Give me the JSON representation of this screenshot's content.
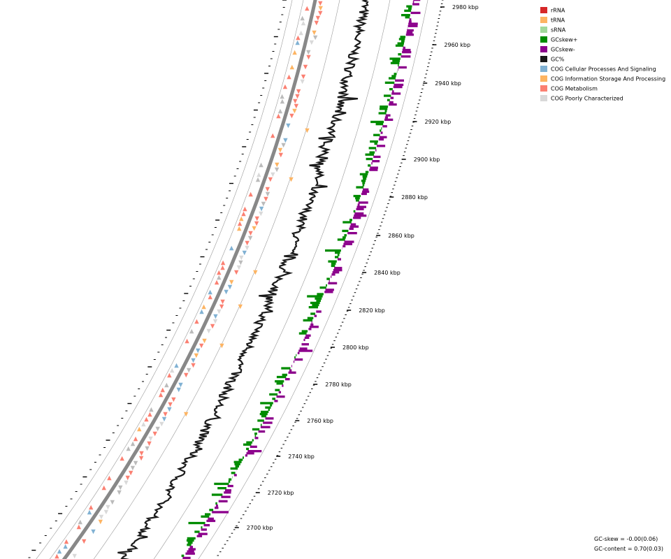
{
  "ticks": [
    {
      "label": "2980 kbp"
    },
    {
      "label": "2960 kbp"
    },
    {
      "label": "2940 kbp"
    },
    {
      "label": "2920 kbp"
    },
    {
      "label": "2900 kbp"
    },
    {
      "label": "2880 kbp"
    },
    {
      "label": "2860 kbp"
    },
    {
      "label": "2840 kbp"
    },
    {
      "label": "2820 kbp"
    },
    {
      "label": "2800 kbp"
    },
    {
      "label": "2780 kbp"
    },
    {
      "label": "2760 kbp"
    },
    {
      "label": "2740 kbp"
    },
    {
      "label": "2720 kbp"
    },
    {
      "label": "2700 kbp"
    }
  ],
  "legend": [
    {
      "label": "rRNA",
      "color": "#d62728"
    },
    {
      "label": "tRNA",
      "color": "#fdb462"
    },
    {
      "label": "sRNA",
      "color": "#a1d99b"
    },
    {
      "label": "GCskew+",
      "color": "#008c00"
    },
    {
      "label": "GCskew-",
      "color": "#8c008c"
    },
    {
      "label": "GC%",
      "color": "#1a1a1a"
    },
    {
      "label": "COG Cellular Processes And Signaling",
      "color": "#80b1d3"
    },
    {
      "label": "COG Information Storage And Processing",
      "color": "#fdb462"
    },
    {
      "label": "COG Metabolism",
      "color": "#fb8072"
    },
    {
      "label": "COG Poorly Characterized",
      "color": "#d9d9d9"
    }
  ],
  "stats": {
    "gc_skew": "GC-skew = -0.00(0.06)",
    "gc_content": "GC-content = 0.70(0.03)"
  }
}
